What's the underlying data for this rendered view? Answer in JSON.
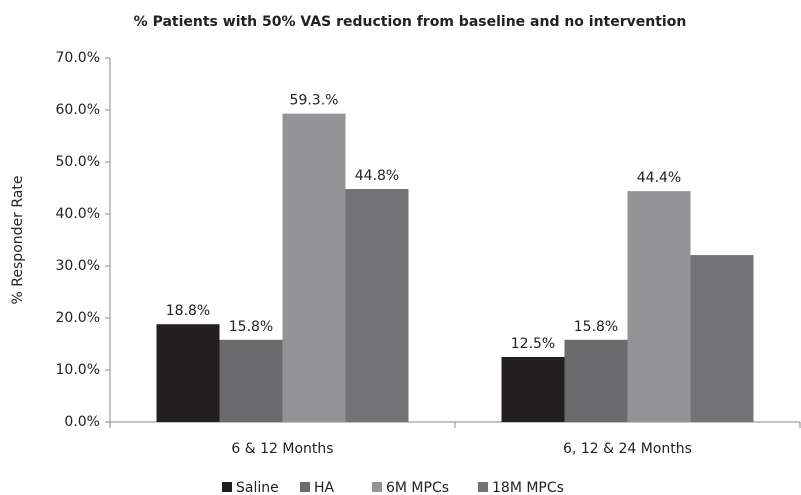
{
  "chart_data": {
    "type": "bar",
    "title": "% Patients with 50% VAS reduction from baseline and no intervention",
    "y_label": "% Responder Rate",
    "categories": [
      "6 & 12 Months",
      "6, 12 & 24 Months"
    ],
    "series": [
      {
        "name": "Saline",
        "color": "#231f20",
        "values": [
          18.8,
          12.5
        ],
        "value_labels": [
          "18.8%",
          "12.5%"
        ]
      },
      {
        "name": "HA",
        "color": "#6b6b6d",
        "values": [
          15.8,
          15.8
        ],
        "value_labels": [
          "15.8%",
          "15.8%"
        ]
      },
      {
        "name": "6M MPCs",
        "color": "#949496",
        "values": [
          59.3,
          44.4
        ],
        "value_labels": [
          "59.3.%",
          "44.4%"
        ]
      },
      {
        "name": "18M MPCs",
        "color": "#747476",
        "values": [
          44.8,
          32.1
        ],
        "value_labels": [
          "44.8%",
          null
        ]
      }
    ],
    "ylim": [
      0,
      70
    ],
    "yticks": [
      {
        "value": 0,
        "label": "0.0%"
      },
      {
        "value": 10,
        "label": "10.0%"
      },
      {
        "value": 20,
        "label": "20.0%"
      },
      {
        "value": 30,
        "label": "30.0%"
      },
      {
        "value": 40,
        "label": "40.0%"
      },
      {
        "value": 50,
        "label": "50.0%"
      },
      {
        "value": 60,
        "label": "60.0%"
      },
      {
        "value": 70,
        "label": "70.0%"
      }
    ],
    "legend": "bottom"
  }
}
